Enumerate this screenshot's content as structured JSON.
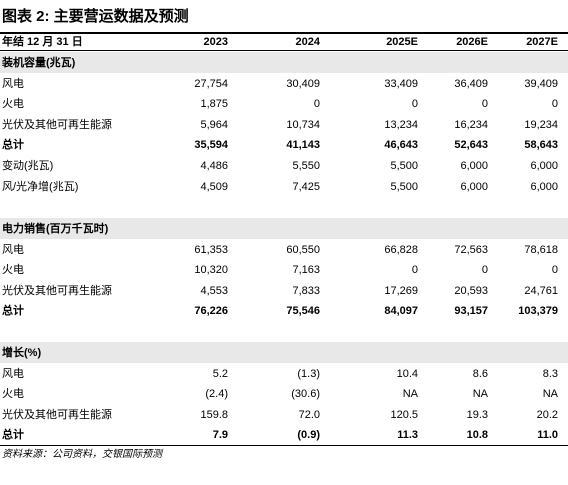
{
  "title": "图表 2: 主要营运数据及预测",
  "table": {
    "header": [
      "年结 12 月 31 日",
      "2023",
      "2024",
      "2025E",
      "2026E",
      "2027E"
    ],
    "sections": [
      {
        "title": "装机容量(兆瓦)",
        "rows": [
          {
            "label": "风电",
            "cells": [
              "27,754",
              "30,409",
              "33,409",
              "36,409",
              "39,409"
            ]
          },
          {
            "label": "火电",
            "cells": [
              "1,875",
              "0",
              "0",
              "0",
              "0"
            ]
          },
          {
            "label": "光伏及其他可再生能源",
            "cells": [
              "5,964",
              "10,734",
              "13,234",
              "16,234",
              "19,234"
            ]
          },
          {
            "label": "总计",
            "cells": [
              "35,594",
              "41,143",
              "46,643",
              "52,643",
              "58,643"
            ],
            "bold": true
          },
          {
            "label": "变动(兆瓦)",
            "cells": [
              "4,486",
              "5,550",
              "5,500",
              "6,000",
              "6,000"
            ]
          },
          {
            "label": "风/光净增(兆瓦)",
            "cells": [
              "4,509",
              "7,425",
              "5,500",
              "6,000",
              "6,000"
            ]
          }
        ]
      },
      {
        "title": "电力销售(百万千瓦时)",
        "rows": [
          {
            "label": "风电",
            "cells": [
              "61,353",
              "60,550",
              "66,828",
              "72,563",
              "78,618"
            ]
          },
          {
            "label": "火电",
            "cells": [
              "10,320",
              "7,163",
              "0",
              "0",
              "0"
            ]
          },
          {
            "label": "光伏及其他可再生能源",
            "cells": [
              "4,553",
              "7,833",
              "17,269",
              "20,593",
              "24,761"
            ]
          },
          {
            "label": "总计",
            "cells": [
              "76,226",
              "75,546",
              "84,097",
              "93,157",
              "103,379"
            ],
            "bold": true
          }
        ]
      },
      {
        "title": "增长(%)",
        "rows": [
          {
            "label": "风电",
            "cells": [
              "5.2",
              "(1.3)",
              "10.4",
              "8.6",
              "8.3"
            ]
          },
          {
            "label": "火电",
            "cells": [
              "(2.4)",
              "(30.6)",
              "NA",
              "NA",
              "NA"
            ]
          },
          {
            "label": "光伏及其他可再生能源",
            "cells": [
              "159.8",
              "72.0",
              "120.5",
              "19.3",
              "20.2"
            ]
          },
          {
            "label": "总计",
            "cells": [
              "7.9",
              "(0.9)",
              "11.3",
              "10.8",
              "11.0"
            ],
            "bold": true
          }
        ]
      }
    ]
  },
  "source": "资料来源：公司资料，交银国际预测"
}
